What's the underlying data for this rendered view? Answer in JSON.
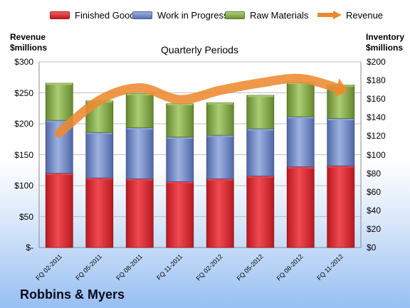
{
  "chart_data": {
    "type": "bar",
    "subtitle": "Quarterly Periods",
    "company": "Robbins & Myers",
    "left_axis_title": [
      "Revenue",
      "$millions"
    ],
    "right_axis_title": [
      "Inventory",
      "$millions"
    ],
    "left_ticks": [
      "$-",
      "$50",
      "$100",
      "$150",
      "$200",
      "$250",
      "$300"
    ],
    "right_ticks": [
      "$0",
      "$20",
      "$40",
      "$60",
      "$80",
      "$100",
      "$120",
      "$140",
      "$160",
      "$180",
      "$200"
    ],
    "left_range": [
      0,
      300
    ],
    "right_range": [
      0,
      200
    ],
    "categories": [
      "FQ 02-2011",
      "FQ 05-2011",
      "FQ 08-2011",
      "FQ 11-2011",
      "FQ 02-2012",
      "FQ 05-2012",
      "FQ 08-2012",
      "FQ 11-2012"
    ],
    "legend": [
      "Finished Goods",
      "Work in Progress",
      "Raw Materials",
      "Revenue"
    ],
    "series": [
      {
        "name": "Finished Goods",
        "axis": "right",
        "stacked": true,
        "color": "#e0232b",
        "values": [
          80,
          75,
          74,
          71,
          74,
          77,
          87,
          88
        ]
      },
      {
        "name": "Work in Progress",
        "axis": "right",
        "stacked": true,
        "color": "#7088c4",
        "values": [
          57,
          49,
          55,
          48,
          47,
          51,
          54,
          51
        ]
      },
      {
        "name": "Raw Materials",
        "axis": "right",
        "stacked": true,
        "color": "#8db04a",
        "values": [
          40,
          34,
          37,
          36,
          35,
          36,
          37,
          36
        ]
      },
      {
        "name": "Revenue",
        "axis": "left",
        "type": "line",
        "color": "#f0913a",
        "values": [
          185,
          238,
          258,
          239,
          254,
          266,
          273,
          256
        ]
      }
    ],
    "grid": true,
    "legend_position": "top"
  }
}
